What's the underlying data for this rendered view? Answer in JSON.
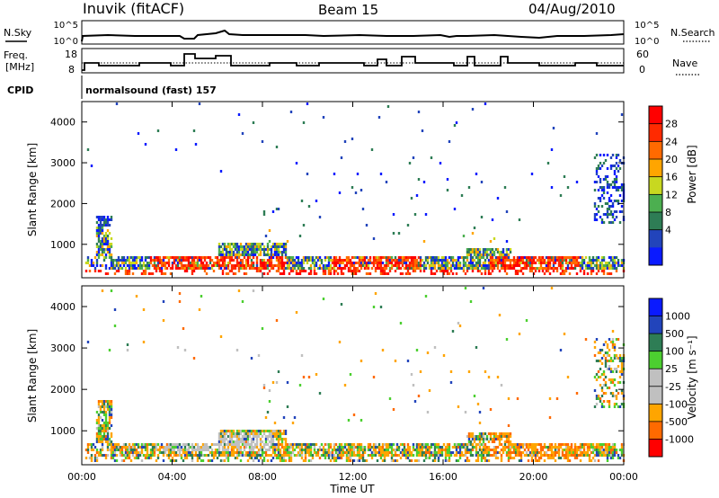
{
  "header": {
    "station": "Inuvik (fitACF)",
    "beam": "Beam 15",
    "date": "04/Aug/2010"
  },
  "noise_panel": {
    "left_label": "N.Sky",
    "right_label": "N.Search",
    "left_ticks": [
      "10^5",
      "10^0"
    ],
    "right_ticks": [
      "10^5",
      "10^0"
    ]
  },
  "freq_panel": {
    "left_label_line1": "Freq.",
    "left_label_line2": "[MHz]",
    "left_ticks": [
      "18",
      "8"
    ],
    "right_label": "Nave",
    "right_ticks": [
      "60",
      "0"
    ]
  },
  "cpid": {
    "label": "CPID",
    "value": "normalsound (fast) 157"
  },
  "colors": {
    "power_scale": [
      "#0a1aff",
      "#2244bb",
      "#2e7d55",
      "#4caf50",
      "#c8d820",
      "#ffa500",
      "#ff6a00",
      "#ff2a00",
      "#ff0000"
    ],
    "velocity_scale": [
      "#ff0000",
      "#ff6a00",
      "#ffa500",
      "#c0c0c0",
      "#c0c0c0",
      "#4ccf30",
      "#2e7d55",
      "#2244bb",
      "#0a1aff"
    ]
  },
  "chart_data": [
    {
      "type": "heatmap",
      "panel": "power",
      "ylabel": "Slant Range [km]",
      "yticks": [
        "4000",
        "3000",
        "2000",
        "1000"
      ],
      "ylim": [
        180,
        4500
      ],
      "xlim_hours": [
        0,
        24
      ],
      "colorbar": {
        "label": "Power [dB]",
        "ticks": [
          "28",
          "24",
          "20",
          "16",
          "12",
          "8",
          "4"
        ],
        "range": [
          0,
          30
        ]
      }
    },
    {
      "type": "heatmap",
      "panel": "velocity",
      "ylabel": "Slant Range [km]",
      "yticks": [
        "4000",
        "3000",
        "2000",
        "1000"
      ],
      "ylim": [
        180,
        4500
      ],
      "xlim_hours": [
        0,
        24
      ],
      "xticks": [
        "00:00",
        "04:00",
        "08:00",
        "12:00",
        "16:00",
        "20:00",
        "00:00"
      ],
      "xlabel": "Time UT",
      "colorbar": {
        "label": "Velocity [m s⁻¹]",
        "ticks": [
          "1000",
          "500",
          "100",
          "25",
          "-25",
          "-100",
          "-500",
          "-1000"
        ],
        "range": [
          -1000,
          1000
        ]
      }
    }
  ]
}
